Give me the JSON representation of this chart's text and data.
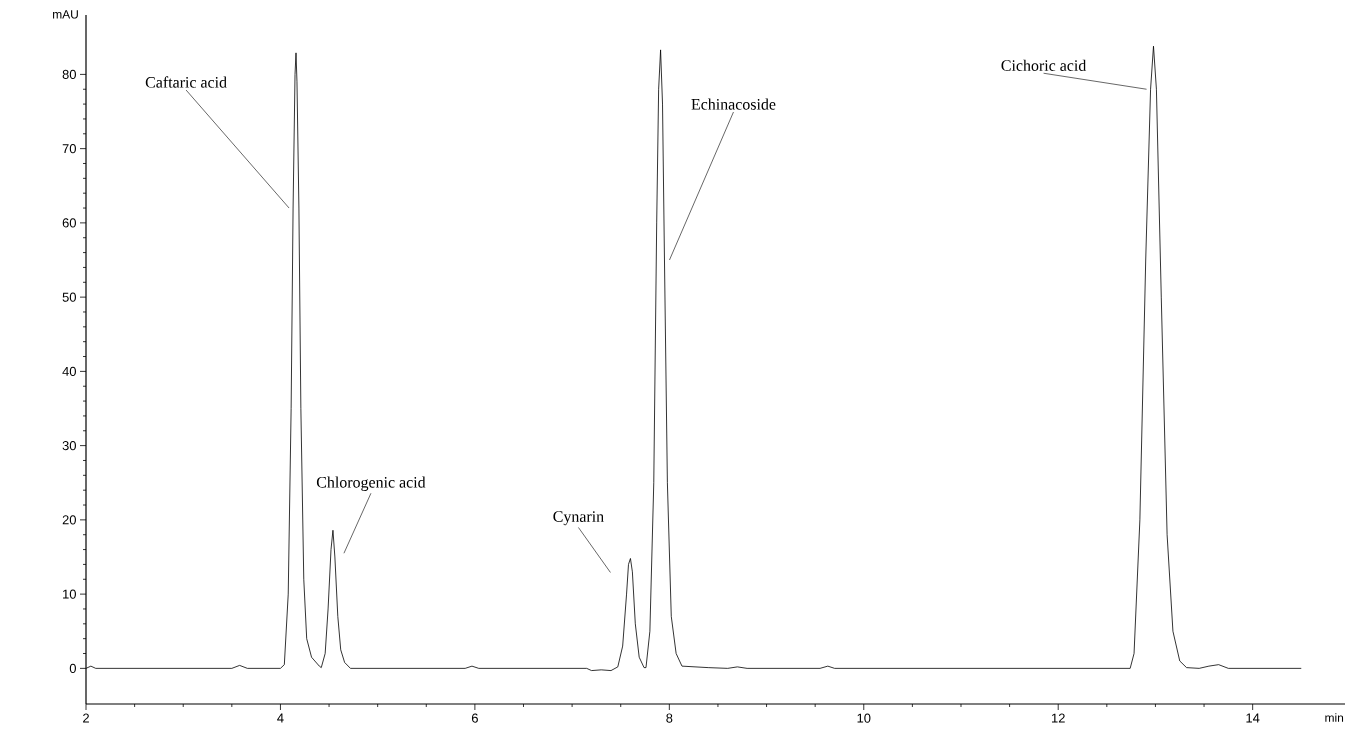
{
  "chart_data": {
    "type": "line",
    "xlabel": "min",
    "ylabel": "mAU",
    "x": [
      2.0,
      2.05,
      2.1,
      3.5,
      3.58,
      3.66,
      4.0,
      4.04,
      4.08,
      4.11,
      4.13,
      4.15,
      4.16,
      4.17,
      4.19,
      4.21,
      4.24,
      4.27,
      4.32,
      4.4,
      4.42,
      4.46,
      4.49,
      4.52,
      4.54,
      4.56,
      4.59,
      4.62,
      4.66,
      4.72,
      5.9,
      5.97,
      6.04,
      7.15,
      7.2,
      7.3,
      7.4,
      7.47,
      7.52,
      7.56,
      7.58,
      7.6,
      7.62,
      7.65,
      7.69,
      7.74,
      7.76,
      7.8,
      7.84,
      7.87,
      7.89,
      7.91,
      7.93,
      7.95,
      7.98,
      8.02,
      8.07,
      8.13,
      8.4,
      8.6,
      8.7,
      8.8,
      9.55,
      9.63,
      9.7,
      12.74,
      12.78,
      12.84,
      12.9,
      12.95,
      12.98,
      13.01,
      13.06,
      13.12,
      13.18,
      13.25,
      13.32,
      13.45,
      13.55,
      13.65,
      13.75,
      14.5
    ],
    "series": [
      {
        "color": "#000000",
        "values": [
          0,
          0.3,
          0,
          0,
          0.4,
          0,
          0,
          0.5,
          10,
          35,
          62,
          80,
          82.9,
          79,
          62,
          35,
          12,
          4,
          1.5,
          0.3,
          0.1,
          2,
          8,
          16,
          18.6,
          15,
          7,
          2.5,
          0.8,
          0,
          0,
          0.3,
          0,
          0,
          -0.3,
          -0.2,
          -0.3,
          0.2,
          3,
          10,
          14,
          14.8,
          13,
          6,
          1.5,
          0.1,
          0.1,
          5,
          25,
          60,
          78,
          83.3,
          76,
          55,
          25,
          7,
          2,
          0.3,
          0.1,
          0,
          0.2,
          0,
          0,
          0.3,
          0,
          0,
          2,
          20,
          55,
          78,
          83.8,
          78,
          50,
          18,
          5,
          1,
          0.1,
          0,
          0.3,
          0.5,
          0,
          0
        ]
      }
    ],
    "xlim": [
      2,
      14.95
    ],
    "ylim": [
      -4.8,
      88
    ],
    "xticks": [
      2,
      4,
      6,
      8,
      10,
      12,
      14
    ],
    "yticks": [
      0,
      10,
      20,
      30,
      40,
      50,
      60,
      70,
      80
    ],
    "grid": false,
    "annotations": [
      {
        "text": "Caftaric acid",
        "x": 4.13,
        "y": 62
      },
      {
        "text": "Chlorogenic acid",
        "x": 4.54,
        "y": 18.6
      },
      {
        "text": "Cynarin",
        "x": 7.6,
        "y": 14.8
      },
      {
        "text": "Echinacoside",
        "x": 7.95,
        "y": 55
      },
      {
        "text": "Cichoric acid",
        "x": 12.95,
        "y": 78
      }
    ]
  }
}
